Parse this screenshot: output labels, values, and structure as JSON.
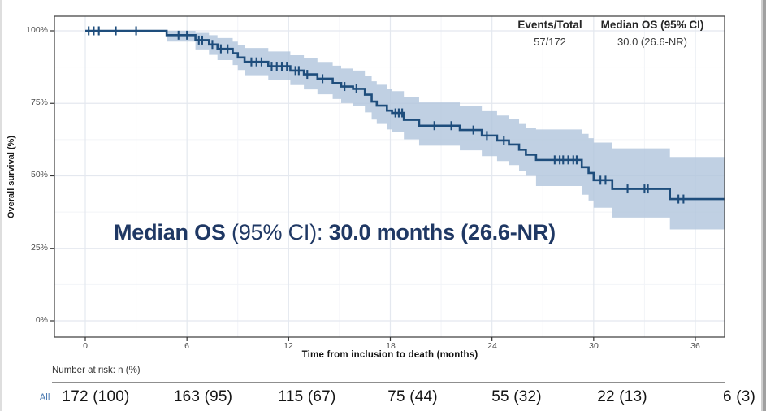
{
  "legend": {
    "col1_header": "Events/Total",
    "col1_value": "57/172",
    "col2_header": "Median OS (95% CI)",
    "col2_value": "30.0 (26.6-NR)"
  },
  "annotation": {
    "prefix_bold": "Median OS",
    "mid_regular": " (95% CI): ",
    "suffix_bold": "30.0 months (26.6-NR)",
    "color": "#1f3864"
  },
  "axes": {
    "y_label": "Overall survival (%)",
    "x_label": "Time from inclusion to death (months)",
    "y_tick_labels": [
      "100%",
      "75%",
      "50%",
      "25%",
      "0%"
    ],
    "x_tick_labels": [
      "0",
      "6",
      "12",
      "18",
      "24",
      "30",
      "36"
    ]
  },
  "risk_table": {
    "caption": "Number at risk: n (%)",
    "group_label": "All",
    "values": [
      "172 (100)",
      "163 (95)",
      "115 (67)",
      "75 (44)",
      "55 (32)",
      "22 (13)",
      "6 (3)"
    ]
  },
  "chart_data": {
    "type": "line",
    "subtype": "kaplan-meier-step",
    "title": "Overall survival Kaplan-Meier curve",
    "series_name": "All",
    "events_total": "57/172",
    "median_os_months": 30.0,
    "median_os_ci": "26.6-NR",
    "xlabel": "Time from inclusion to death (months)",
    "ylabel": "Overall survival (%)",
    "xlim": [
      0,
      37.7
    ],
    "ylim_pct": [
      0,
      100
    ],
    "x_ticks": [
      0,
      6,
      12,
      18,
      24,
      30,
      36
    ],
    "x_minor_grid": [
      3,
      9,
      15,
      21,
      27,
      33
    ],
    "y_ticks_pct": [
      0,
      25,
      50,
      75,
      100
    ],
    "y_minor_grid_pct": [
      12.5,
      37.5,
      62.5,
      87.5
    ],
    "curve_color": "#1e4d7c",
    "band_color": "#b0c4dc",
    "band_opacity": 0.8,
    "curve_end_month": 37.7,
    "survival_steps": [
      [
        0,
        100
      ],
      [
        4.8,
        98.5
      ],
      [
        6.5,
        96.8
      ],
      [
        7.3,
        95.3
      ],
      [
        7.8,
        93.8
      ],
      [
        8.7,
        92.3
      ],
      [
        9.0,
        90.8
      ],
      [
        9.4,
        89.3
      ],
      [
        10.8,
        87.8
      ],
      [
        12.1,
        86.3
      ],
      [
        12.9,
        85.0
      ],
      [
        13.7,
        83.5
      ],
      [
        14.6,
        82.0
      ],
      [
        15.1,
        80.8
      ],
      [
        15.8,
        80.0
      ],
      [
        16.5,
        78.0
      ],
      [
        16.9,
        75.6
      ],
      [
        17.2,
        74.2
      ],
      [
        17.8,
        72.5
      ],
      [
        18.1,
        71.7
      ],
      [
        18.8,
        69.3
      ],
      [
        19.7,
        67.3
      ],
      [
        22.1,
        65.8
      ],
      [
        23.4,
        63.9
      ],
      [
        24.3,
        62.2
      ],
      [
        25.0,
        60.8
      ],
      [
        25.6,
        59.0
      ],
      [
        26.0,
        57.3
      ],
      [
        26.6,
        55.5
      ],
      [
        29.3,
        53.0
      ],
      [
        29.7,
        51.0
      ],
      [
        30.0,
        48.5
      ],
      [
        31.1,
        45.5
      ],
      [
        34.5,
        42.0
      ]
    ],
    "censor_marks": [
      [
        0.2,
        100
      ],
      [
        0.5,
        100
      ],
      [
        0.8,
        100
      ],
      [
        1.8,
        100
      ],
      [
        3.0,
        100
      ],
      [
        5.5,
        98.5
      ],
      [
        6.0,
        98.5
      ],
      [
        6.7,
        96.8
      ],
      [
        6.9,
        96.8
      ],
      [
        7.5,
        95.3
      ],
      [
        8.0,
        93.8
      ],
      [
        8.4,
        93.8
      ],
      [
        9.8,
        89.3
      ],
      [
        10.1,
        89.3
      ],
      [
        10.4,
        89.3
      ],
      [
        11.0,
        87.8
      ],
      [
        11.3,
        87.8
      ],
      [
        11.6,
        87.8
      ],
      [
        11.9,
        87.8
      ],
      [
        12.4,
        86.3
      ],
      [
        12.6,
        86.3
      ],
      [
        13.1,
        85.0
      ],
      [
        14.0,
        83.5
      ],
      [
        15.3,
        80.8
      ],
      [
        16.0,
        80.0
      ],
      [
        18.3,
        71.7
      ],
      [
        18.5,
        71.7
      ],
      [
        18.7,
        71.7
      ],
      [
        20.6,
        67.3
      ],
      [
        21.6,
        67.3
      ],
      [
        22.9,
        65.8
      ],
      [
        23.7,
        63.9
      ],
      [
        24.7,
        62.2
      ],
      [
        27.7,
        55.5
      ],
      [
        28.0,
        55.5
      ],
      [
        28.2,
        55.5
      ],
      [
        28.5,
        55.5
      ],
      [
        28.8,
        55.5
      ],
      [
        29.0,
        55.5
      ],
      [
        30.4,
        48.5
      ],
      [
        30.7,
        48.5
      ],
      [
        32.0,
        45.5
      ],
      [
        33.0,
        45.5
      ],
      [
        33.2,
        45.5
      ],
      [
        35.0,
        42.0
      ],
      [
        35.3,
        42.0
      ]
    ],
    "ci_band": [
      [
        0,
        100,
        100
      ],
      [
        4.8,
        100,
        96.3
      ],
      [
        6.5,
        99.3,
        93.6
      ],
      [
        7.3,
        98.5,
        91.7
      ],
      [
        7.8,
        97.5,
        89.9
      ],
      [
        8.7,
        96.3,
        88.2
      ],
      [
        9.0,
        95.2,
        86.5
      ],
      [
        9.4,
        94.1,
        84.7
      ],
      [
        10.8,
        92.9,
        83.0
      ],
      [
        12.1,
        91.6,
        81.3
      ],
      [
        12.9,
        90.5,
        79.8
      ],
      [
        13.7,
        89.3,
        78.1
      ],
      [
        14.6,
        88.0,
        76.5
      ],
      [
        15.1,
        87.0,
        75.1
      ],
      [
        15.8,
        86.3,
        74.2
      ],
      [
        16.5,
        84.6,
        71.9
      ],
      [
        16.9,
        82.6,
        69.4
      ],
      [
        17.2,
        81.4,
        67.9
      ],
      [
        17.8,
        79.9,
        66.0
      ],
      [
        18.1,
        79.2,
        65.1
      ],
      [
        18.8,
        77.1,
        62.6
      ],
      [
        19.7,
        75.3,
        60.4
      ],
      [
        22.1,
        74.0,
        58.8
      ],
      [
        23.4,
        72.3,
        56.8
      ],
      [
        24.3,
        70.8,
        55.1
      ],
      [
        25.0,
        69.5,
        53.7
      ],
      [
        25.6,
        67.9,
        51.8
      ],
      [
        26.0,
        66.4,
        50.0
      ],
      [
        26.6,
        66.0,
        46.5
      ],
      [
        29.3,
        64.5,
        43.5
      ],
      [
        29.7,
        63.0,
        41.5
      ],
      [
        30.0,
        61.5,
        39.0
      ],
      [
        31.1,
        59.5,
        35.6
      ],
      [
        34.5,
        56.5,
        31.5
      ]
    ],
    "legend_position": "top-right",
    "grid": "on",
    "risk_row": {
      "group": "All",
      "counts": [
        172,
        163,
        115,
        75,
        55,
        22,
        6
      ],
      "percents": [
        100,
        95,
        67,
        44,
        32,
        13,
        3
      ]
    }
  }
}
